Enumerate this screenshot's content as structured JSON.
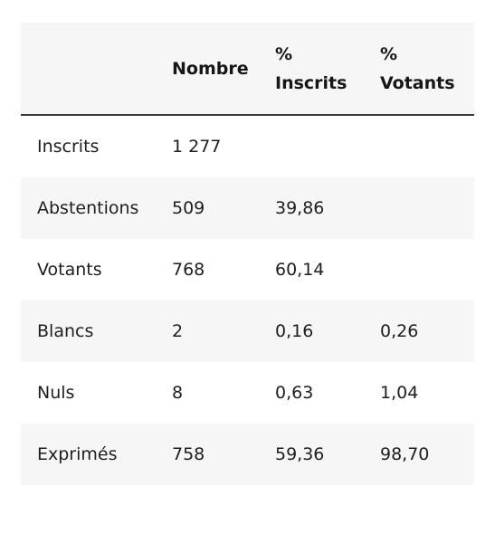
{
  "table": {
    "headers": [
      "",
      "Nombre",
      "%\nInscrits",
      "%\nVotants"
    ],
    "rows": [
      {
        "label": "Inscrits",
        "nombre": "1 277",
        "pct_inscrits": "",
        "pct_votants": ""
      },
      {
        "label": "Abstentions",
        "nombre": "509",
        "pct_inscrits": "39,86",
        "pct_votants": ""
      },
      {
        "label": "Votants",
        "nombre": "768",
        "pct_inscrits": "60,14",
        "pct_votants": ""
      },
      {
        "label": "Blancs",
        "nombre": "2",
        "pct_inscrits": "0,16",
        "pct_votants": "0,26"
      },
      {
        "label": "Nuls",
        "nombre": "8",
        "pct_inscrits": "0,63",
        "pct_votants": "1,04"
      },
      {
        "label": "Exprimés",
        "nombre": "758",
        "pct_inscrits": "59,36",
        "pct_votants": "98,70"
      }
    ]
  }
}
